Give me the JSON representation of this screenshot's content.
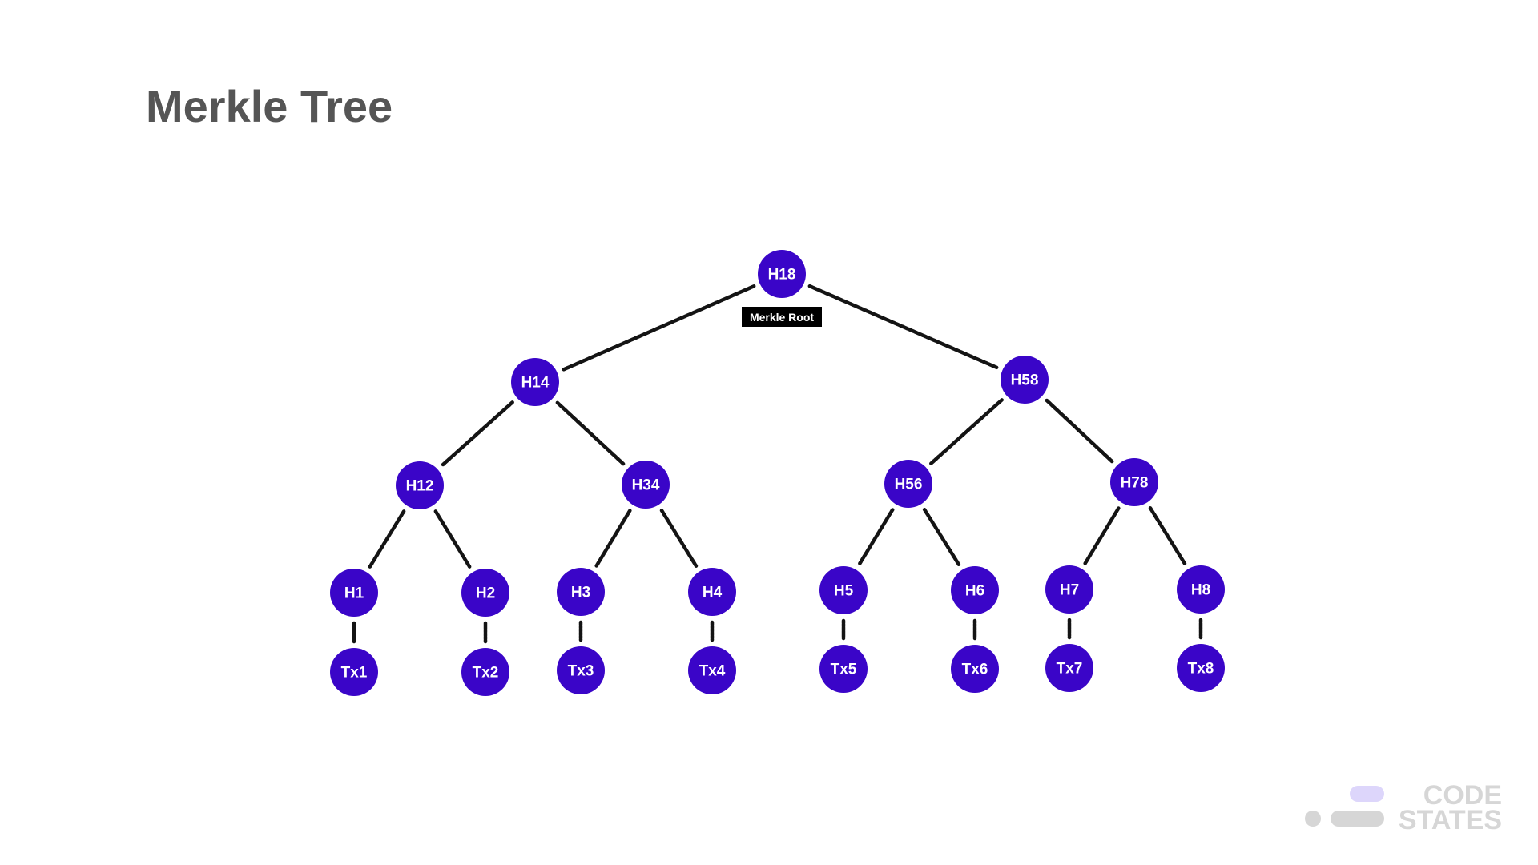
{
  "slide": {
    "title": "Merkle Tree"
  },
  "diagram": {
    "root_label": "Merkle Root",
    "nodes": [
      {
        "id": "H18",
        "label": "H18"
      },
      {
        "id": "H14",
        "label": "H14"
      },
      {
        "id": "H58",
        "label": "H58"
      },
      {
        "id": "H12",
        "label": "H12"
      },
      {
        "id": "H34",
        "label": "H34"
      },
      {
        "id": "H56",
        "label": "H56"
      },
      {
        "id": "H78",
        "label": "H78"
      },
      {
        "id": "H1",
        "label": "H1"
      },
      {
        "id": "H2",
        "label": "H2"
      },
      {
        "id": "H3",
        "label": "H3"
      },
      {
        "id": "H4",
        "label": "H4"
      },
      {
        "id": "H5",
        "label": "H5"
      },
      {
        "id": "H6",
        "label": "H6"
      },
      {
        "id": "H7",
        "label": "H7"
      },
      {
        "id": "H8",
        "label": "H8"
      },
      {
        "id": "Tx1",
        "label": "Tx1"
      },
      {
        "id": "Tx2",
        "label": "Tx2"
      },
      {
        "id": "Tx3",
        "label": "Tx3"
      },
      {
        "id": "Tx4",
        "label": "Tx4"
      },
      {
        "id": "Tx5",
        "label": "Tx5"
      },
      {
        "id": "Tx6",
        "label": "Tx6"
      },
      {
        "id": "Tx7",
        "label": "Tx7"
      },
      {
        "id": "Tx8",
        "label": "Tx8"
      }
    ],
    "edges": [
      [
        "H18",
        "H14"
      ],
      [
        "H18",
        "H58"
      ],
      [
        "H14",
        "H12"
      ],
      [
        "H14",
        "H34"
      ],
      [
        "H58",
        "H56"
      ],
      [
        "H58",
        "H78"
      ],
      [
        "H12",
        "H1"
      ],
      [
        "H12",
        "H2"
      ],
      [
        "H34",
        "H3"
      ],
      [
        "H34",
        "H4"
      ],
      [
        "H56",
        "H5"
      ],
      [
        "H56",
        "H6"
      ],
      [
        "H78",
        "H7"
      ],
      [
        "H78",
        "H8"
      ],
      [
        "H1",
        "Tx1"
      ],
      [
        "H2",
        "Tx2"
      ],
      [
        "H3",
        "Tx3"
      ],
      [
        "H4",
        "Tx4"
      ],
      [
        "H5",
        "Tx5"
      ],
      [
        "H6",
        "Tx6"
      ],
      [
        "H7",
        "Tx7"
      ],
      [
        "H8",
        "Tx8"
      ]
    ],
    "node_color": "#3a05c8",
    "edge_color": "#141414"
  },
  "brand": {
    "line1": "CODE",
    "line2": "STATES",
    "accent_color": "#ddd6fb",
    "muted_color": "#d6d6d6"
  }
}
